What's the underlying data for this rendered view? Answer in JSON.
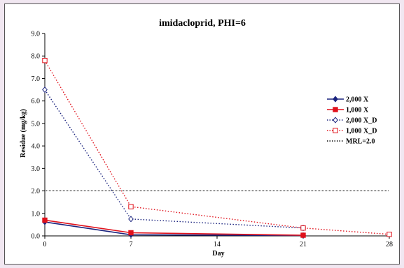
{
  "chart_data": {
    "type": "line",
    "title": "imidacloprid, PHI=6",
    "xlabel": "Day",
    "ylabel": "Residue (mg/kg)",
    "xlim": [
      0,
      28
    ],
    "ylim": [
      0,
      9
    ],
    "xticks": [
      0,
      7,
      14,
      21,
      28
    ],
    "yticks": [
      0,
      1,
      2,
      3,
      4,
      5,
      6,
      7,
      8,
      9
    ],
    "ytick_format": 1,
    "legend_position": "right",
    "grid": false,
    "series": [
      {
        "name": "2,000 X",
        "color": "#1a237e",
        "dash": "solid",
        "marker": "diamond-filled",
        "x": [
          0,
          7,
          21
        ],
        "y": [
          0.62,
          0.05,
          0.02
        ]
      },
      {
        "name": "1,000 X",
        "color": "#e0111b",
        "dash": "solid",
        "marker": "square-filled",
        "x": [
          0,
          7,
          21
        ],
        "y": [
          0.7,
          0.14,
          0.03
        ]
      },
      {
        "name": "2,000 X_D",
        "color": "#1a237e",
        "dash": "dotted",
        "marker": "diamond-open",
        "x": [
          0,
          7,
          21
        ],
        "y": [
          6.5,
          0.75,
          0.35
        ]
      },
      {
        "name": "1,000 X_D",
        "color": "#e0111b",
        "dash": "dotted",
        "marker": "square-open",
        "x": [
          0,
          7,
          21,
          28
        ],
        "y": [
          7.8,
          1.3,
          0.35,
          0.07
        ]
      },
      {
        "name": "MRL=2.0",
        "color": "#000000",
        "dash": "dotted",
        "marker": "none",
        "x": [
          0,
          28
        ],
        "y": [
          2.0,
          2.0
        ]
      }
    ]
  }
}
